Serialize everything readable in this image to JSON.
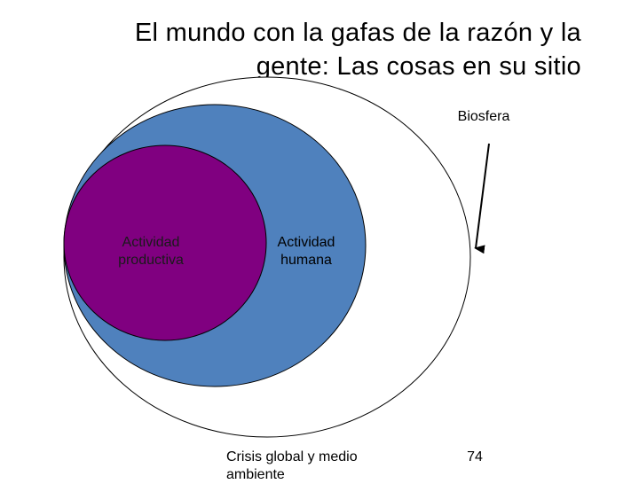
{
  "title": {
    "line1": "El mundo con la gafas de la razón y la",
    "line2": "gente: Las cosas en su sitio"
  },
  "diagram": {
    "inner_label": {
      "line1": "Actividad",
      "line2": "productiva"
    },
    "middle_label": {
      "line1": "Actividad",
      "line2": "humana"
    },
    "outer_label": "Biosfera",
    "colors": {
      "inner_fill": "#800080",
      "middle_fill": "#4f81bd",
      "outer_fill": "#ffffff",
      "outline": "#000000"
    }
  },
  "footer": {
    "text": "Crisis global y medio ambiente",
    "page_number": "74"
  }
}
